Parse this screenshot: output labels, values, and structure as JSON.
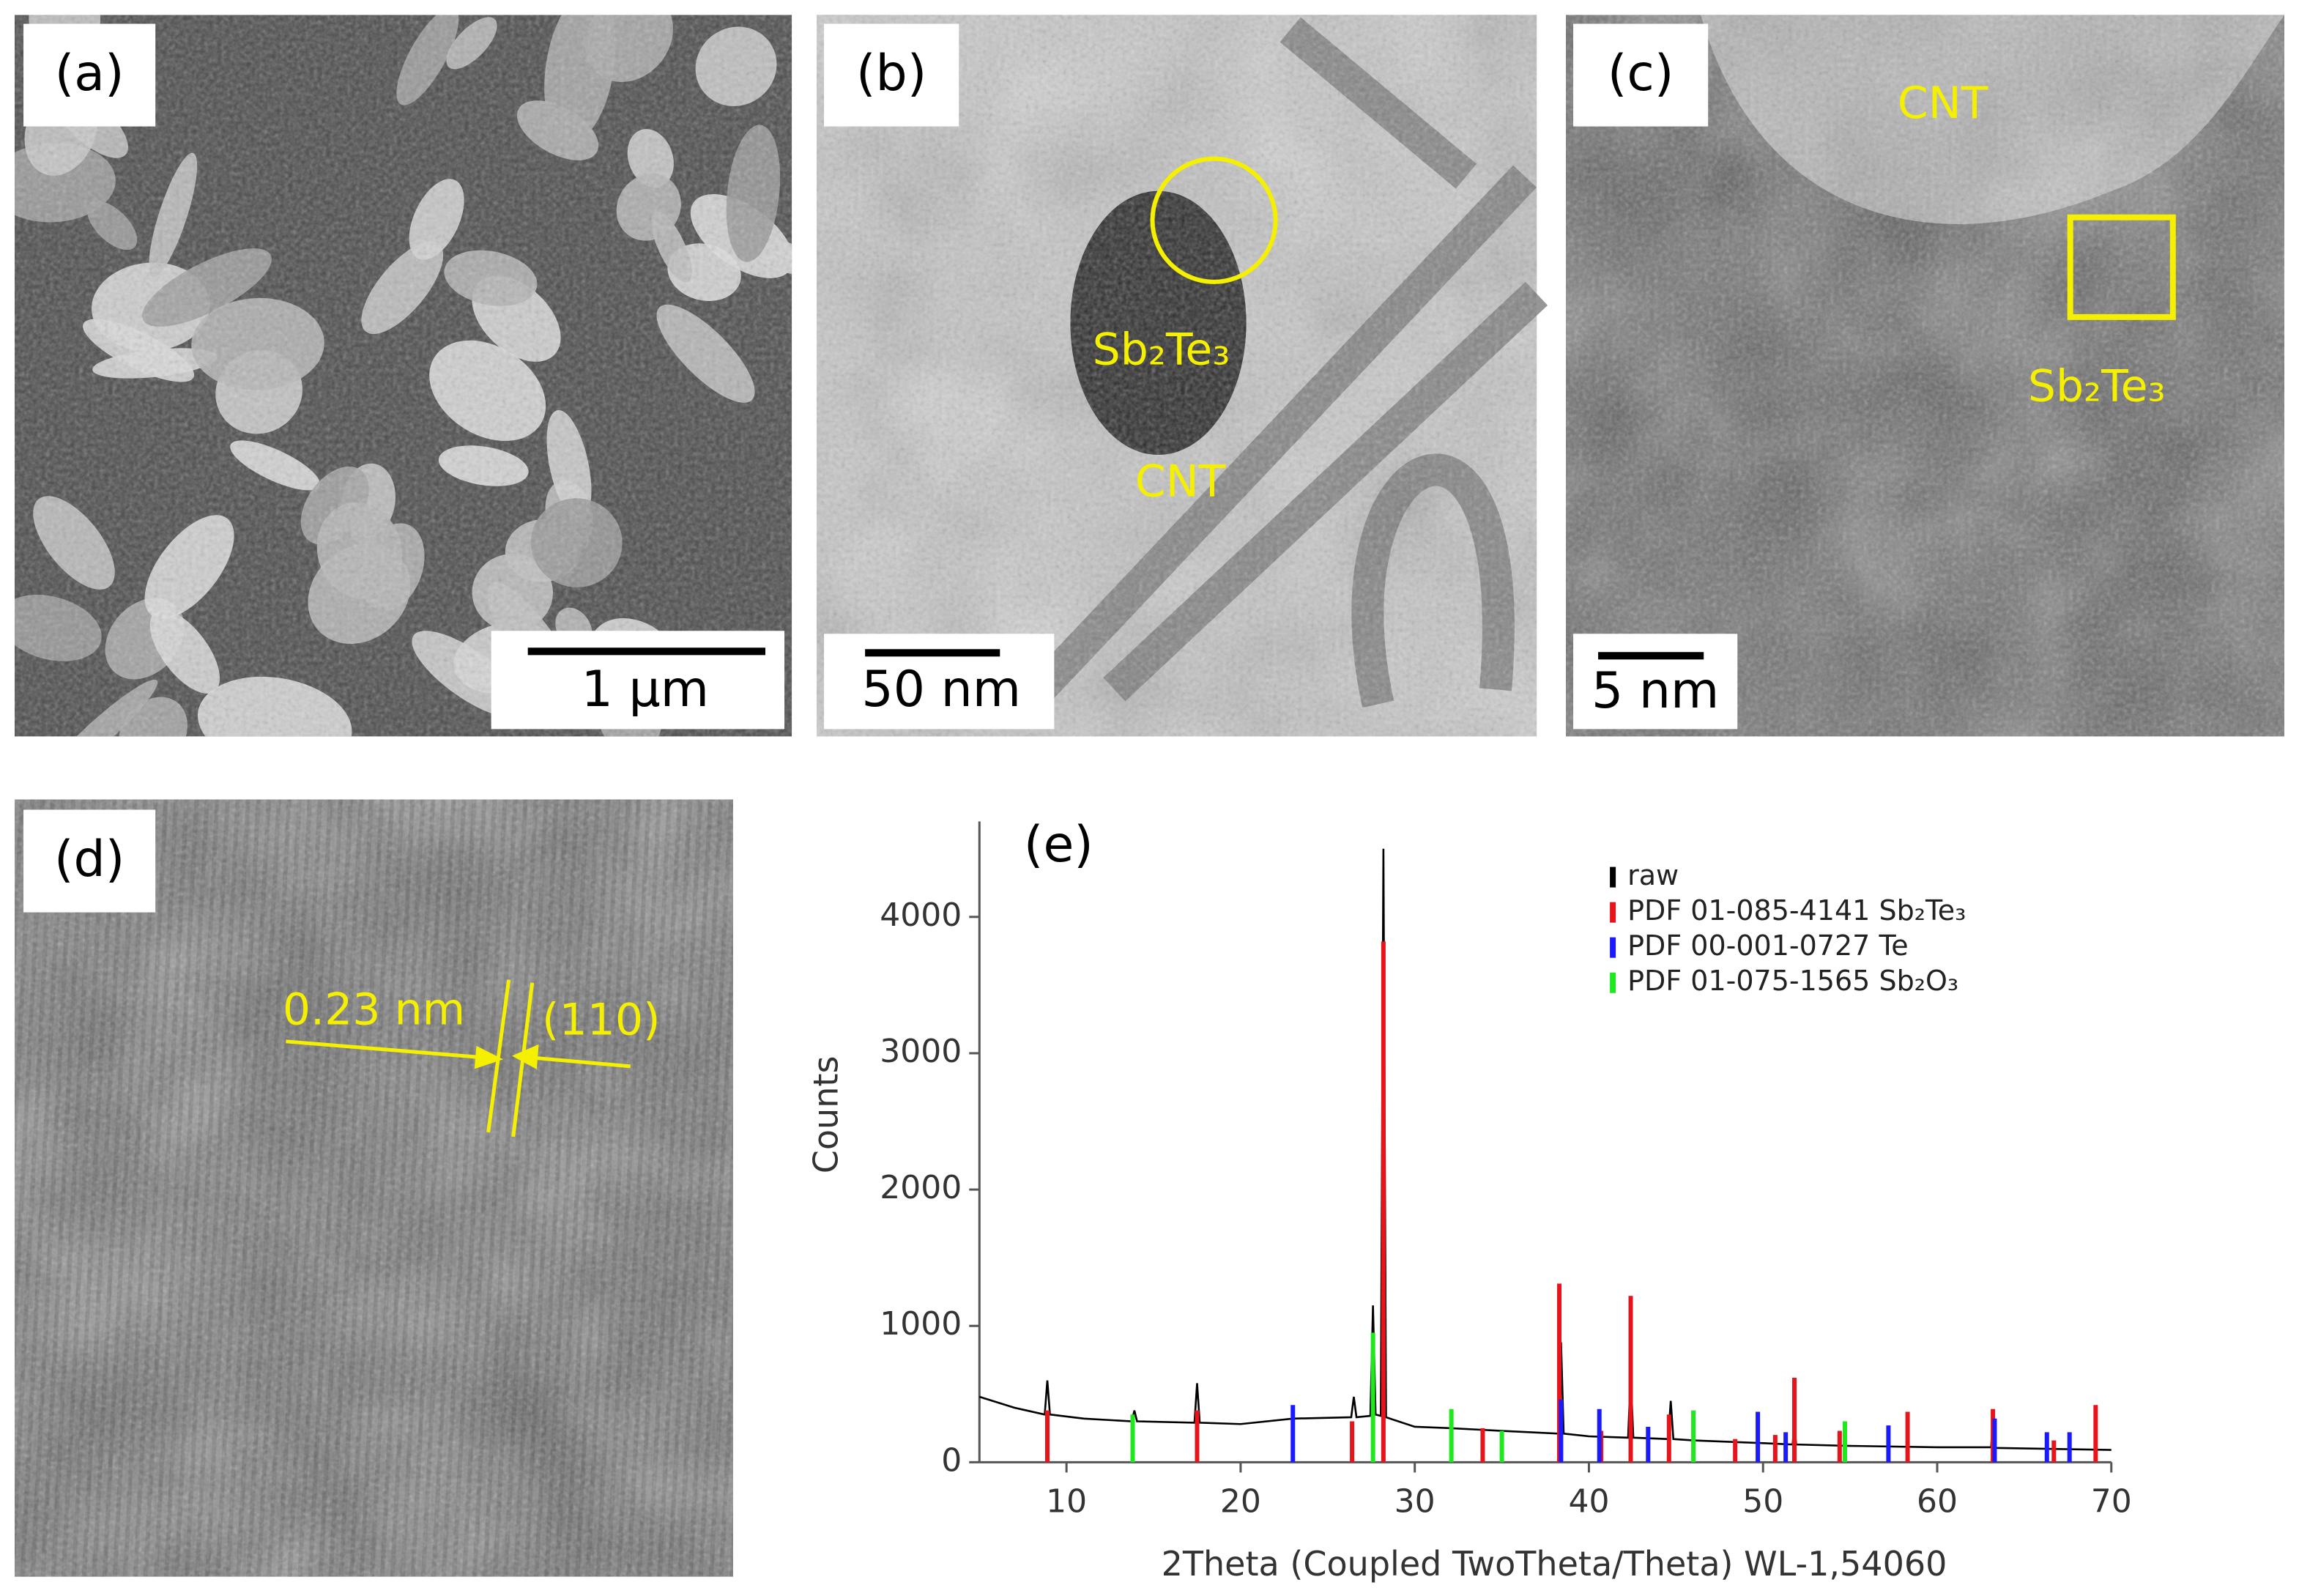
{
  "panels": [
    {
      "label": "(a)",
      "scale_bar": "1 μm"
    },
    {
      "label": "(b)",
      "scale_bar": "50 nm",
      "annotations": [
        "Sb₂Te₃",
        "CNT"
      ]
    },
    {
      "label": "(c)",
      "scale_bar": "5 nm",
      "annotations": [
        "CNT",
        "Sb₂Te₃"
      ]
    },
    {
      "label": "(d)",
      "annotations": [
        "0.23 nm",
        "(110)"
      ]
    }
  ],
  "chart_data": {
    "type": "line",
    "annotation": "(e)",
    "x_label": "2Theta (Coupled TwoTheta/Theta) WL-1,54060",
    "y_label": "Counts",
    "xlim": [
      5,
      70
    ],
    "xticks": [
      10,
      20,
      30,
      40,
      50,
      60,
      70
    ],
    "ylim": [
      0,
      4700
    ],
    "yticks": [
      0,
      1000,
      2000,
      3000,
      4000
    ],
    "series": [
      {
        "name": "raw",
        "color": "#000000",
        "mark": "line",
        "x": [
          5,
          7,
          8.75,
          8.9,
          9.05,
          11,
          13.75,
          13.9,
          14.05,
          17.35,
          17.5,
          17.65,
          20,
          23,
          26.35,
          26.5,
          26.65,
          27.45,
          27.6,
          27.75,
          28.05,
          28.2,
          28.35,
          30,
          32,
          35,
          38.25,
          38.4,
          38.55,
          40,
          42.25,
          42.4,
          42.55,
          44.55,
          44.7,
          44.85,
          46,
          50,
          51.7,
          51.8,
          51.9,
          55,
          60,
          63.1,
          63.2,
          63.3,
          70
        ],
        "values": [
          480,
          400,
          350,
          600,
          350,
          320,
          300,
          380,
          300,
          290,
          580,
          290,
          280,
          320,
          330,
          480,
          330,
          340,
          1150,
          350,
          340,
          4500,
          330,
          260,
          250,
          230,
          210,
          880,
          210,
          190,
          180,
          650,
          180,
          170,
          450,
          170,
          160,
          140,
          130,
          300,
          130,
          120,
          110,
          110,
          350,
          105,
          90
        ]
      },
      {
        "name": "PDF 01-085-4141 Sb₂Te₃",
        "color": "#e8141c",
        "mark": "stick",
        "x": [
          8.9,
          17.5,
          26.4,
          28.2,
          33.9,
          38.3,
          40.7,
          42.4,
          44.6,
          48.4,
          50.7,
          51.8,
          54.4,
          58.3,
          63.2,
          66.7,
          69.1
        ],
        "values": [
          380,
          380,
          300,
          3820,
          250,
          1310,
          230,
          1220,
          350,
          170,
          200,
          620,
          230,
          370,
          390,
          160,
          420
        ]
      },
      {
        "name": "PDF 00-001-0727 Te",
        "color": "#1a1aff",
        "mark": "stick",
        "x": [
          23.0,
          38.4,
          40.6,
          43.4,
          49.7,
          51.3,
          57.2,
          63.3,
          66.3,
          67.6
        ],
        "values": [
          420,
          460,
          390,
          260,
          370,
          220,
          270,
          320,
          220,
          220
        ]
      },
      {
        "name": "PDF 01-075-1565 Sb₂O₃",
        "color": "#1ee81e",
        "mark": "stick",
        "x": [
          13.8,
          27.6,
          32.1,
          35.0,
          46.0,
          54.7
        ],
        "values": [
          350,
          950,
          390,
          230,
          380,
          300
        ]
      }
    ]
  }
}
